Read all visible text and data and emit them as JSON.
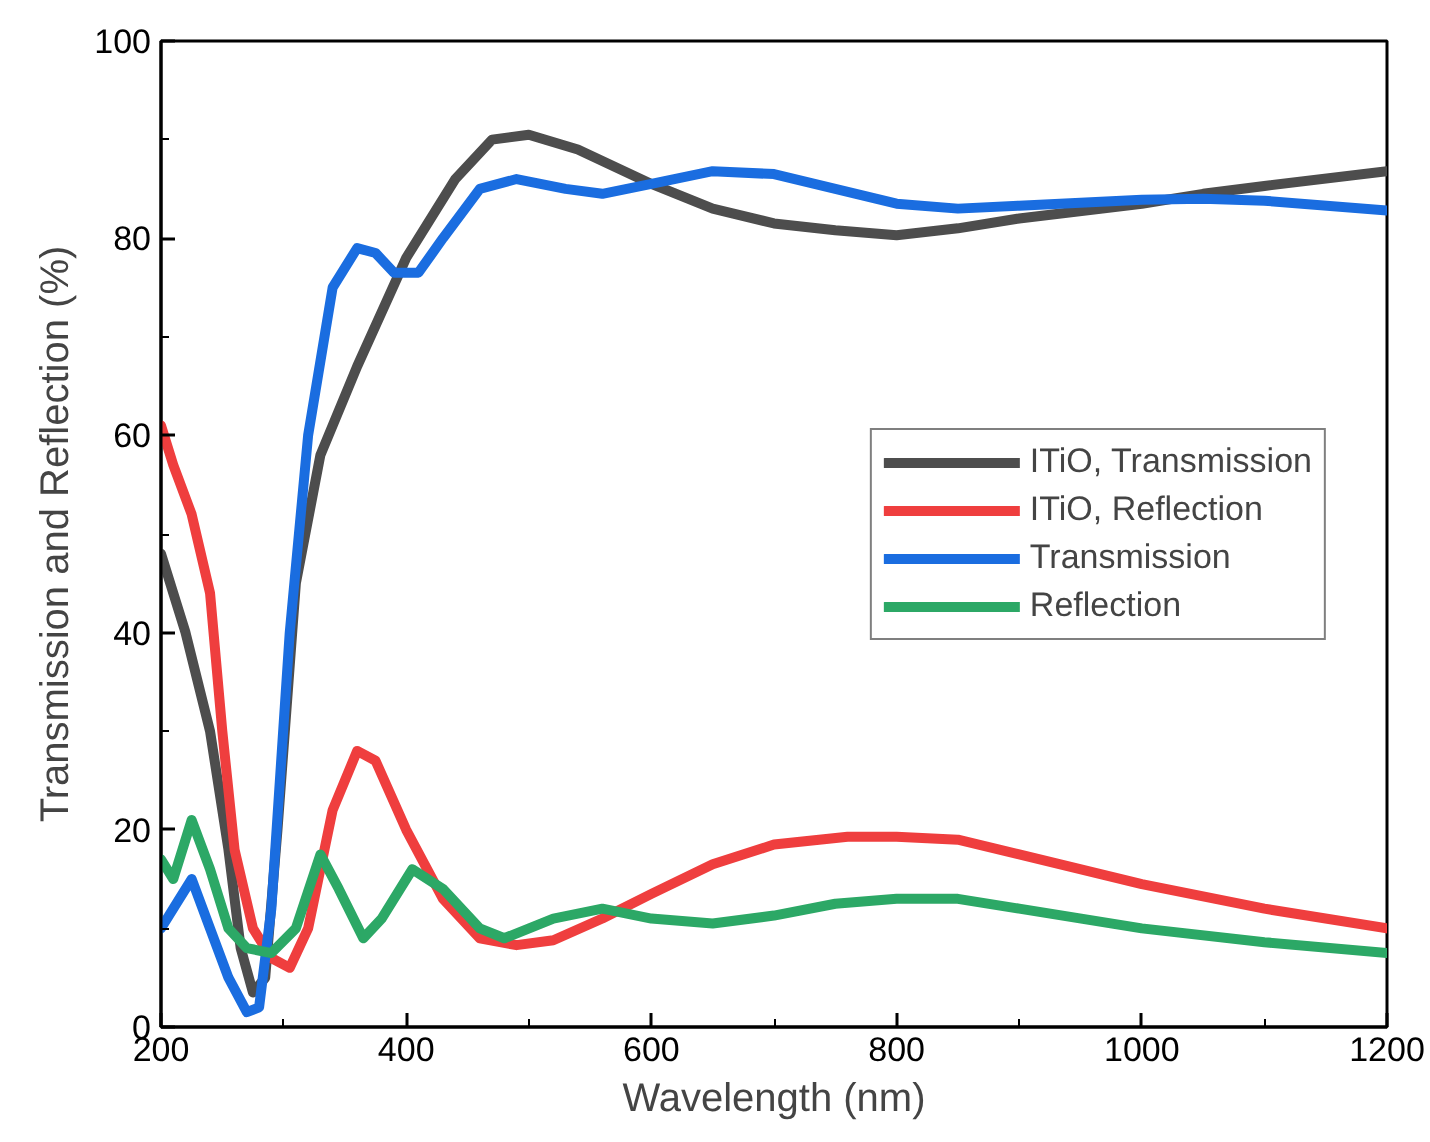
{
  "chart_data": {
    "type": "line",
    "xlabel": "Wavelength (nm)",
    "ylabel": "Transmission and Reflection (%)",
    "xlim": [
      200,
      1200
    ],
    "ylim": [
      0,
      100
    ],
    "xticks": [
      200,
      400,
      600,
      800,
      1000,
      1200
    ],
    "yticks": [
      0,
      20,
      40,
      60,
      80,
      100
    ],
    "grid": false,
    "legend": "right",
    "line_style": "solid",
    "series": [
      {
        "name": "ITiO, Transmission",
        "color": "#4d4d4d",
        "x": [
          200,
          220,
          240,
          255,
          265,
          275,
          285,
          295,
          310,
          330,
          360,
          400,
          440,
          470,
          500,
          540,
          600,
          650,
          700,
          750,
          800,
          850,
          900,
          1000,
          1050,
          1100,
          1200
        ],
        "values": [
          48,
          40,
          30,
          18,
          8,
          3.5,
          5,
          20,
          45,
          58,
          67,
          78,
          86,
          90,
          90.5,
          89,
          85.5,
          83,
          81.5,
          80.8,
          80.3,
          81,
          82,
          83.5,
          84.5,
          85.3,
          86.8
        ]
      },
      {
        "name": "ITiO, Reflection",
        "color": "#ef3e3e",
        "x": [
          200,
          210,
          225,
          240,
          250,
          260,
          275,
          290,
          305,
          320,
          340,
          360,
          375,
          400,
          430,
          460,
          490,
          520,
          560,
          600,
          650,
          700,
          760,
          800,
          850,
          900,
          1000,
          1100,
          1200
        ],
        "values": [
          61,
          57,
          52,
          44,
          30,
          18,
          10,
          7,
          6,
          10,
          22,
          28,
          27,
          20,
          13,
          9,
          8.3,
          8.8,
          11,
          13.5,
          16.5,
          18.5,
          19.3,
          19.3,
          19,
          17.5,
          14.5,
          12,
          10
        ]
      },
      {
        "name": "Transmission",
        "color": "#1a6de0",
        "x": [
          200,
          210,
          225,
          240,
          255,
          270,
          280,
          290,
          305,
          320,
          340,
          360,
          375,
          390,
          410,
          430,
          460,
          490,
          530,
          560,
          600,
          650,
          700,
          750,
          800,
          850,
          900,
          1000,
          1050,
          1100,
          1200
        ],
        "values": [
          10,
          12,
          15,
          10,
          5,
          1.5,
          2,
          12,
          40,
          60,
          75,
          79,
          78.5,
          76.5,
          76.5,
          80,
          85,
          86,
          85,
          84.5,
          85.5,
          86.8,
          86.5,
          85,
          83.5,
          83,
          83.3,
          83.9,
          84,
          83.8,
          82.8
        ]
      },
      {
        "name": "Reflection",
        "color": "#2ca866",
        "x": [
          200,
          210,
          225,
          240,
          255,
          270,
          290,
          310,
          330,
          345,
          365,
          380,
          405,
          430,
          460,
          480,
          520,
          560,
          600,
          650,
          700,
          750,
          800,
          850,
          900,
          1000,
          1100,
          1200
        ],
        "values": [
          17,
          15,
          21,
          16,
          10,
          8,
          7.5,
          10,
          17.5,
          14,
          9,
          11,
          16,
          14,
          10,
          9,
          11,
          12,
          11,
          10.5,
          11.3,
          12.5,
          13,
          13,
          12,
          10,
          8.6,
          7.5
        ]
      }
    ]
  }
}
